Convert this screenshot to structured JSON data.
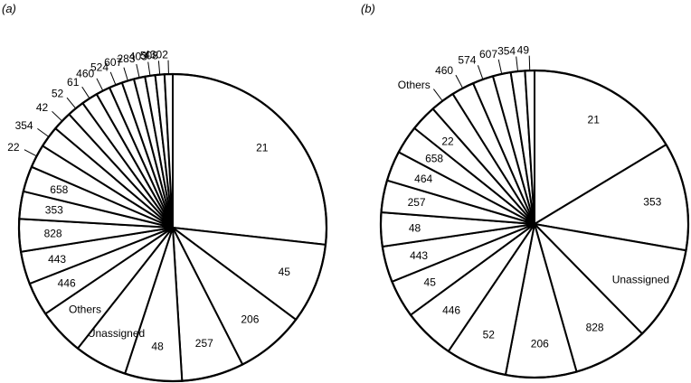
{
  "chart_data": [
    {
      "type": "pie",
      "panel_label": "(a)",
      "slices": [
        {
          "label": "21",
          "value": 25.0
        },
        {
          "label": "45",
          "value": 7.9
        },
        {
          "label": "206",
          "value": 6.8
        },
        {
          "label": "257",
          "value": 6.1
        },
        {
          "label": "48",
          "value": 5.6
        },
        {
          "label": "Unassigned",
          "value": 5.2
        },
        {
          "label": "Others",
          "value": 4.6
        },
        {
          "label": "446",
          "value": 3.3
        },
        {
          "label": "443",
          "value": 3.2
        },
        {
          "label": "828",
          "value": 3.2
        },
        {
          "label": "353",
          "value": 2.7
        },
        {
          "label": "658",
          "value": 2.5
        },
        {
          "label": "22",
          "value": 2.3
        },
        {
          "label": "354",
          "value": 2.1
        },
        {
          "label": "42",
          "value": 1.9
        },
        {
          "label": "52",
          "value": 1.7
        },
        {
          "label": "61",
          "value": 1.6
        },
        {
          "label": "460",
          "value": 1.4
        },
        {
          "label": "524",
          "value": 1.3
        },
        {
          "label": "607",
          "value": 1.2
        },
        {
          "label": "283",
          "value": 1.1
        },
        {
          "label": "403",
          "value": 1.0
        },
        {
          "label": "508",
          "value": 0.9
        },
        {
          "label": "4302",
          "value": 0.8
        }
      ]
    },
    {
      "type": "pie",
      "panel_label": "(b)",
      "slices": [
        {
          "label": "21",
          "value": 16.5
        },
        {
          "label": "353",
          "value": 11.5
        },
        {
          "label": "Unassigned",
          "value": 10.0
        },
        {
          "label": "828",
          "value": 8.0
        },
        {
          "label": "206",
          "value": 7.5
        },
        {
          "label": "52",
          "value": 6.5
        },
        {
          "label": "446",
          "value": 5.5
        },
        {
          "label": "45",
          "value": 4.0
        },
        {
          "label": "443",
          "value": 3.8
        },
        {
          "label": "48",
          "value": 3.6
        },
        {
          "label": "257",
          "value": 3.4
        },
        {
          "label": "464",
          "value": 3.2
        },
        {
          "label": "658",
          "value": 3.0
        },
        {
          "label": "22",
          "value": 2.8
        },
        {
          "label": "Others",
          "value": 2.6
        },
        {
          "label": "460",
          "value": 2.4
        },
        {
          "label": "574",
          "value": 2.2
        },
        {
          "label": "607",
          "value": 1.9
        },
        {
          "label": "354",
          "value": 1.5
        },
        {
          "label": "49",
          "value": 1.0
        }
      ]
    }
  ]
}
